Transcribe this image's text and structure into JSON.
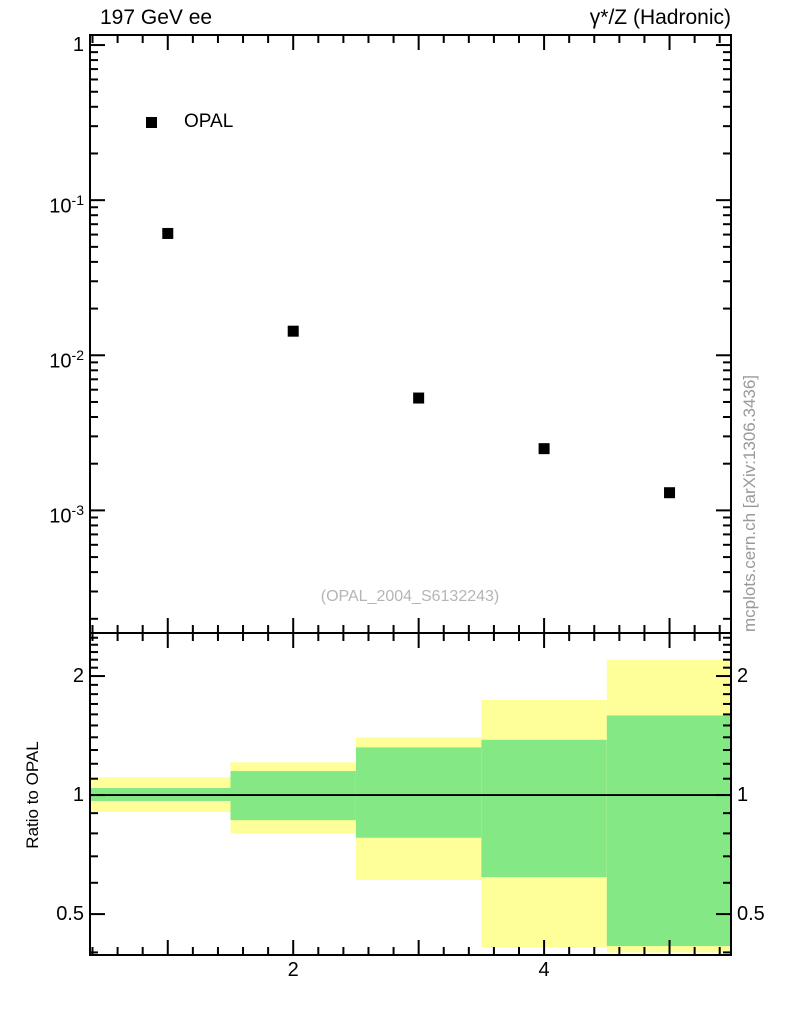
{
  "header": {
    "left": "197 GeV ee",
    "right": "γ*/Z (Hadronic)"
  },
  "legend": {
    "label": "OPAL"
  },
  "watermarks": {
    "analysis": "(OPAL_2004_S6132243)",
    "side": "mcplots.cern.ch [arXiv:1306.3436]"
  },
  "ratio_axis_label": "Ratio to OPAL",
  "chart_data": {
    "type": "scatter",
    "x": {
      "lim": [
        0.38,
        5.49
      ],
      "ticks": [
        {
          "v": 2,
          "label": "2"
        },
        {
          "v": 4,
          "label": "4"
        }
      ]
    },
    "main": {
      "yscale": "log",
      "ylim": [
        0.000162,
        1.161
      ],
      "yticks": [
        {
          "v": 1,
          "label": "1"
        },
        {
          "v": 0.1,
          "base": "10",
          "exp": "-1"
        },
        {
          "v": 0.01,
          "base": "10",
          "exp": "-2"
        },
        {
          "v": 0.001,
          "base": "10",
          "exp": "-3"
        }
      ],
      "series": [
        {
          "name": "OPAL",
          "marker": "filled-square",
          "color": "#000000",
          "x": [
            1,
            2,
            3,
            4,
            5
          ],
          "y": [
            0.061,
            0.0143,
            0.0053,
            0.0025,
            0.0013
          ]
        }
      ]
    },
    "ratio": {
      "yscale": "log",
      "ylim": [
        0.394,
        2.57
      ],
      "line_at": 1,
      "yticks": [
        {
          "v": 0.5,
          "label": "0.5"
        },
        {
          "v": 1,
          "label": "1"
        },
        {
          "v": 2,
          "label": "2"
        }
      ],
      "colors": {
        "yellow": "#ffff99",
        "green": "#84e884"
      },
      "bands": [
        {
          "x0": 0.38,
          "x1": 1.5,
          "yellow": [
            0.906,
            1.11
          ],
          "green": [
            0.966,
            1.042
          ]
        },
        {
          "x0": 1.5,
          "x1": 2.5,
          "yellow": [
            0.8,
            1.21
          ],
          "green": [
            0.864,
            1.15
          ]
        },
        {
          "x0": 2.5,
          "x1": 3.5,
          "yellow": [
            0.61,
            1.4
          ],
          "green": [
            0.78,
            1.32
          ]
        },
        {
          "x0": 3.5,
          "x1": 4.5,
          "yellow": [
            0.412,
            1.74
          ],
          "green": [
            0.62,
            1.38
          ]
        },
        {
          "x0": 4.5,
          "x1": 5.49,
          "yellow": [
            0.4,
            2.2
          ],
          "green": [
            0.415,
            1.59
          ]
        }
      ]
    }
  }
}
